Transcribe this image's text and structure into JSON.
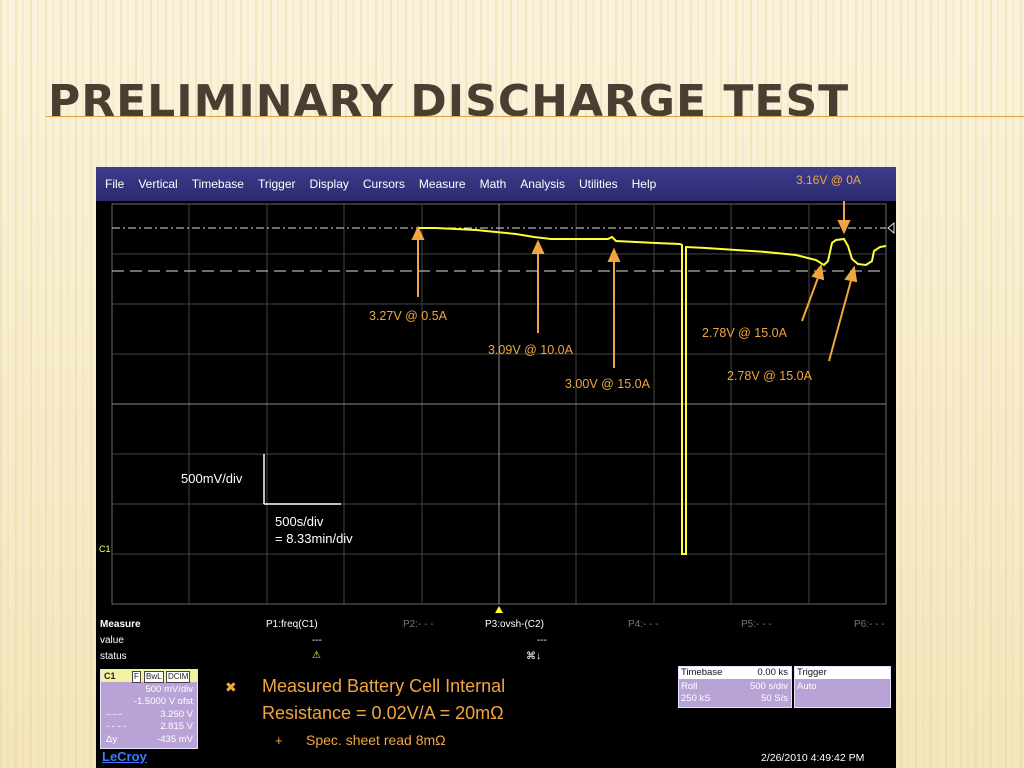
{
  "slide": {
    "title": "PRELIMINARY DISCHARGE TEST",
    "bullet": {
      "line1": "Measured Battery Cell Internal",
      "line2": "Resistance = 0.02V/A = 20mΩ",
      "icon": "x-mark-icon",
      "sub": "Spec. sheet read 8mΩ",
      "sub_icon": "plus-icon"
    },
    "accent_color": "#f0a640"
  },
  "scope": {
    "menu": [
      "File",
      "Vertical",
      "Timebase",
      "Trigger",
      "Display",
      "Cursors",
      "Measure",
      "Math",
      "Analysis",
      "Utilities",
      "Help"
    ],
    "trace_color": "#ffff33",
    "annotations": {
      "top": "3.16V @ 0A",
      "a1": "3.27V @ 0.5A",
      "a2": "3.09V @ 10.0A",
      "a3": "3.00V @ 15.0A",
      "a4": "2.78V @ 15.0A",
      "a5": "2.78V @ 15.0A"
    },
    "scale": {
      "vertical": "500mV/div",
      "horizontal_1": "500s/div",
      "horizontal_2": "= 8.33min/div"
    },
    "c1_marker": "C1",
    "measure": {
      "title": "Measure",
      "row_value": "value",
      "row_status": "status",
      "p1": "P1:freq(C1)",
      "p1_value": "---",
      "p2": "P2:- - -",
      "p3": "P3:ovsh-(C2)",
      "p3_value": "---",
      "p3_status": "⌘↓",
      "p4": "P4:- - -",
      "p5": "P5:- - -",
      "p6": "P6:- - -"
    },
    "channel": {
      "name": "C1",
      "badges": [
        "F",
        "BwL",
        "DCIM"
      ],
      "volts_div": "500 mV/div",
      "offset": "-1.5000 V ofst",
      "cursor1_label": "-·-·-",
      "cursor1": "3.250 V",
      "cursor2_label": "- - - -",
      "cursor2": "2.815 V",
      "delta_label": "Δy",
      "delta": "-435 mV"
    },
    "brand": "LeCroy",
    "timebase": {
      "label": "Timebase",
      "offset": "0.00 ks",
      "mode": "Roll",
      "s_div": "500 s/div",
      "samples": "250 kS",
      "rate": "50 S/s"
    },
    "trigger": {
      "label": "Trigger",
      "mode": "Auto"
    },
    "datetime": "2/26/2010 4:49:42 PM"
  }
}
